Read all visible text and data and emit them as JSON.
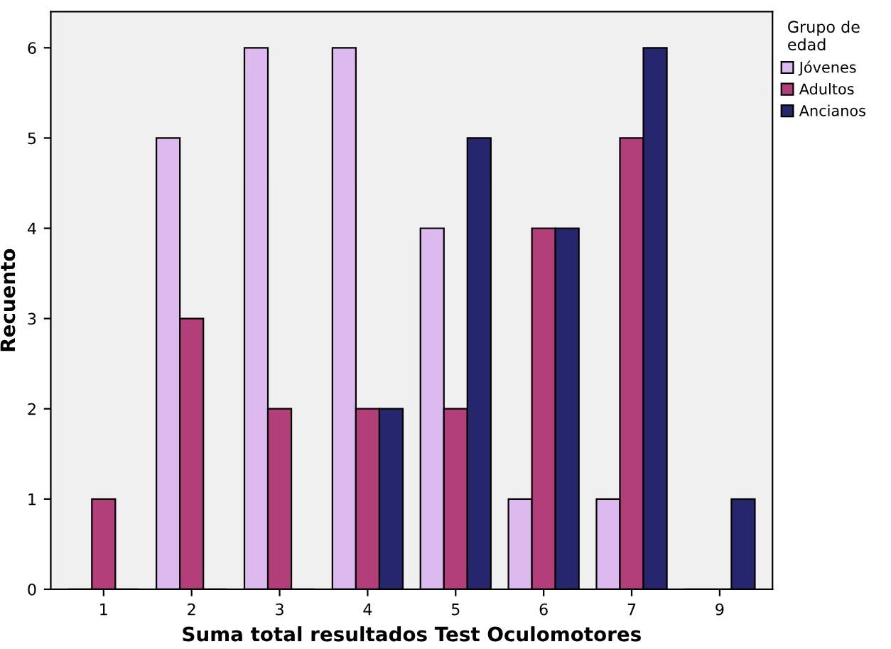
{
  "chart_data": {
    "type": "bar",
    "xlabel": "Suma total resultados Test Oculomotores",
    "ylabel": "Recuento",
    "legend_title": "Grupo de\nedad",
    "categories": [
      "1",
      "2",
      "3",
      "4",
      "5",
      "6",
      "7",
      "9"
    ],
    "series": [
      {
        "name": "Jóvenes",
        "color": "#dcb9ee",
        "values": [
          0,
          5,
          6,
          6,
          4,
          1,
          1,
          0
        ]
      },
      {
        "name": "Adultos",
        "color": "#b33f7a",
        "values": [
          1,
          3,
          2,
          2,
          2,
          4,
          5,
          0
        ]
      },
      {
        "name": "Ancianos",
        "color": "#26266e",
        "values": [
          0,
          0,
          0,
          2,
          5,
          4,
          6,
          1
        ]
      }
    ],
    "ylim": [
      0,
      6.4
    ],
    "yticks": [
      0,
      1,
      2,
      3,
      4,
      5,
      6
    ],
    "grid": false,
    "legend": "top right"
  }
}
